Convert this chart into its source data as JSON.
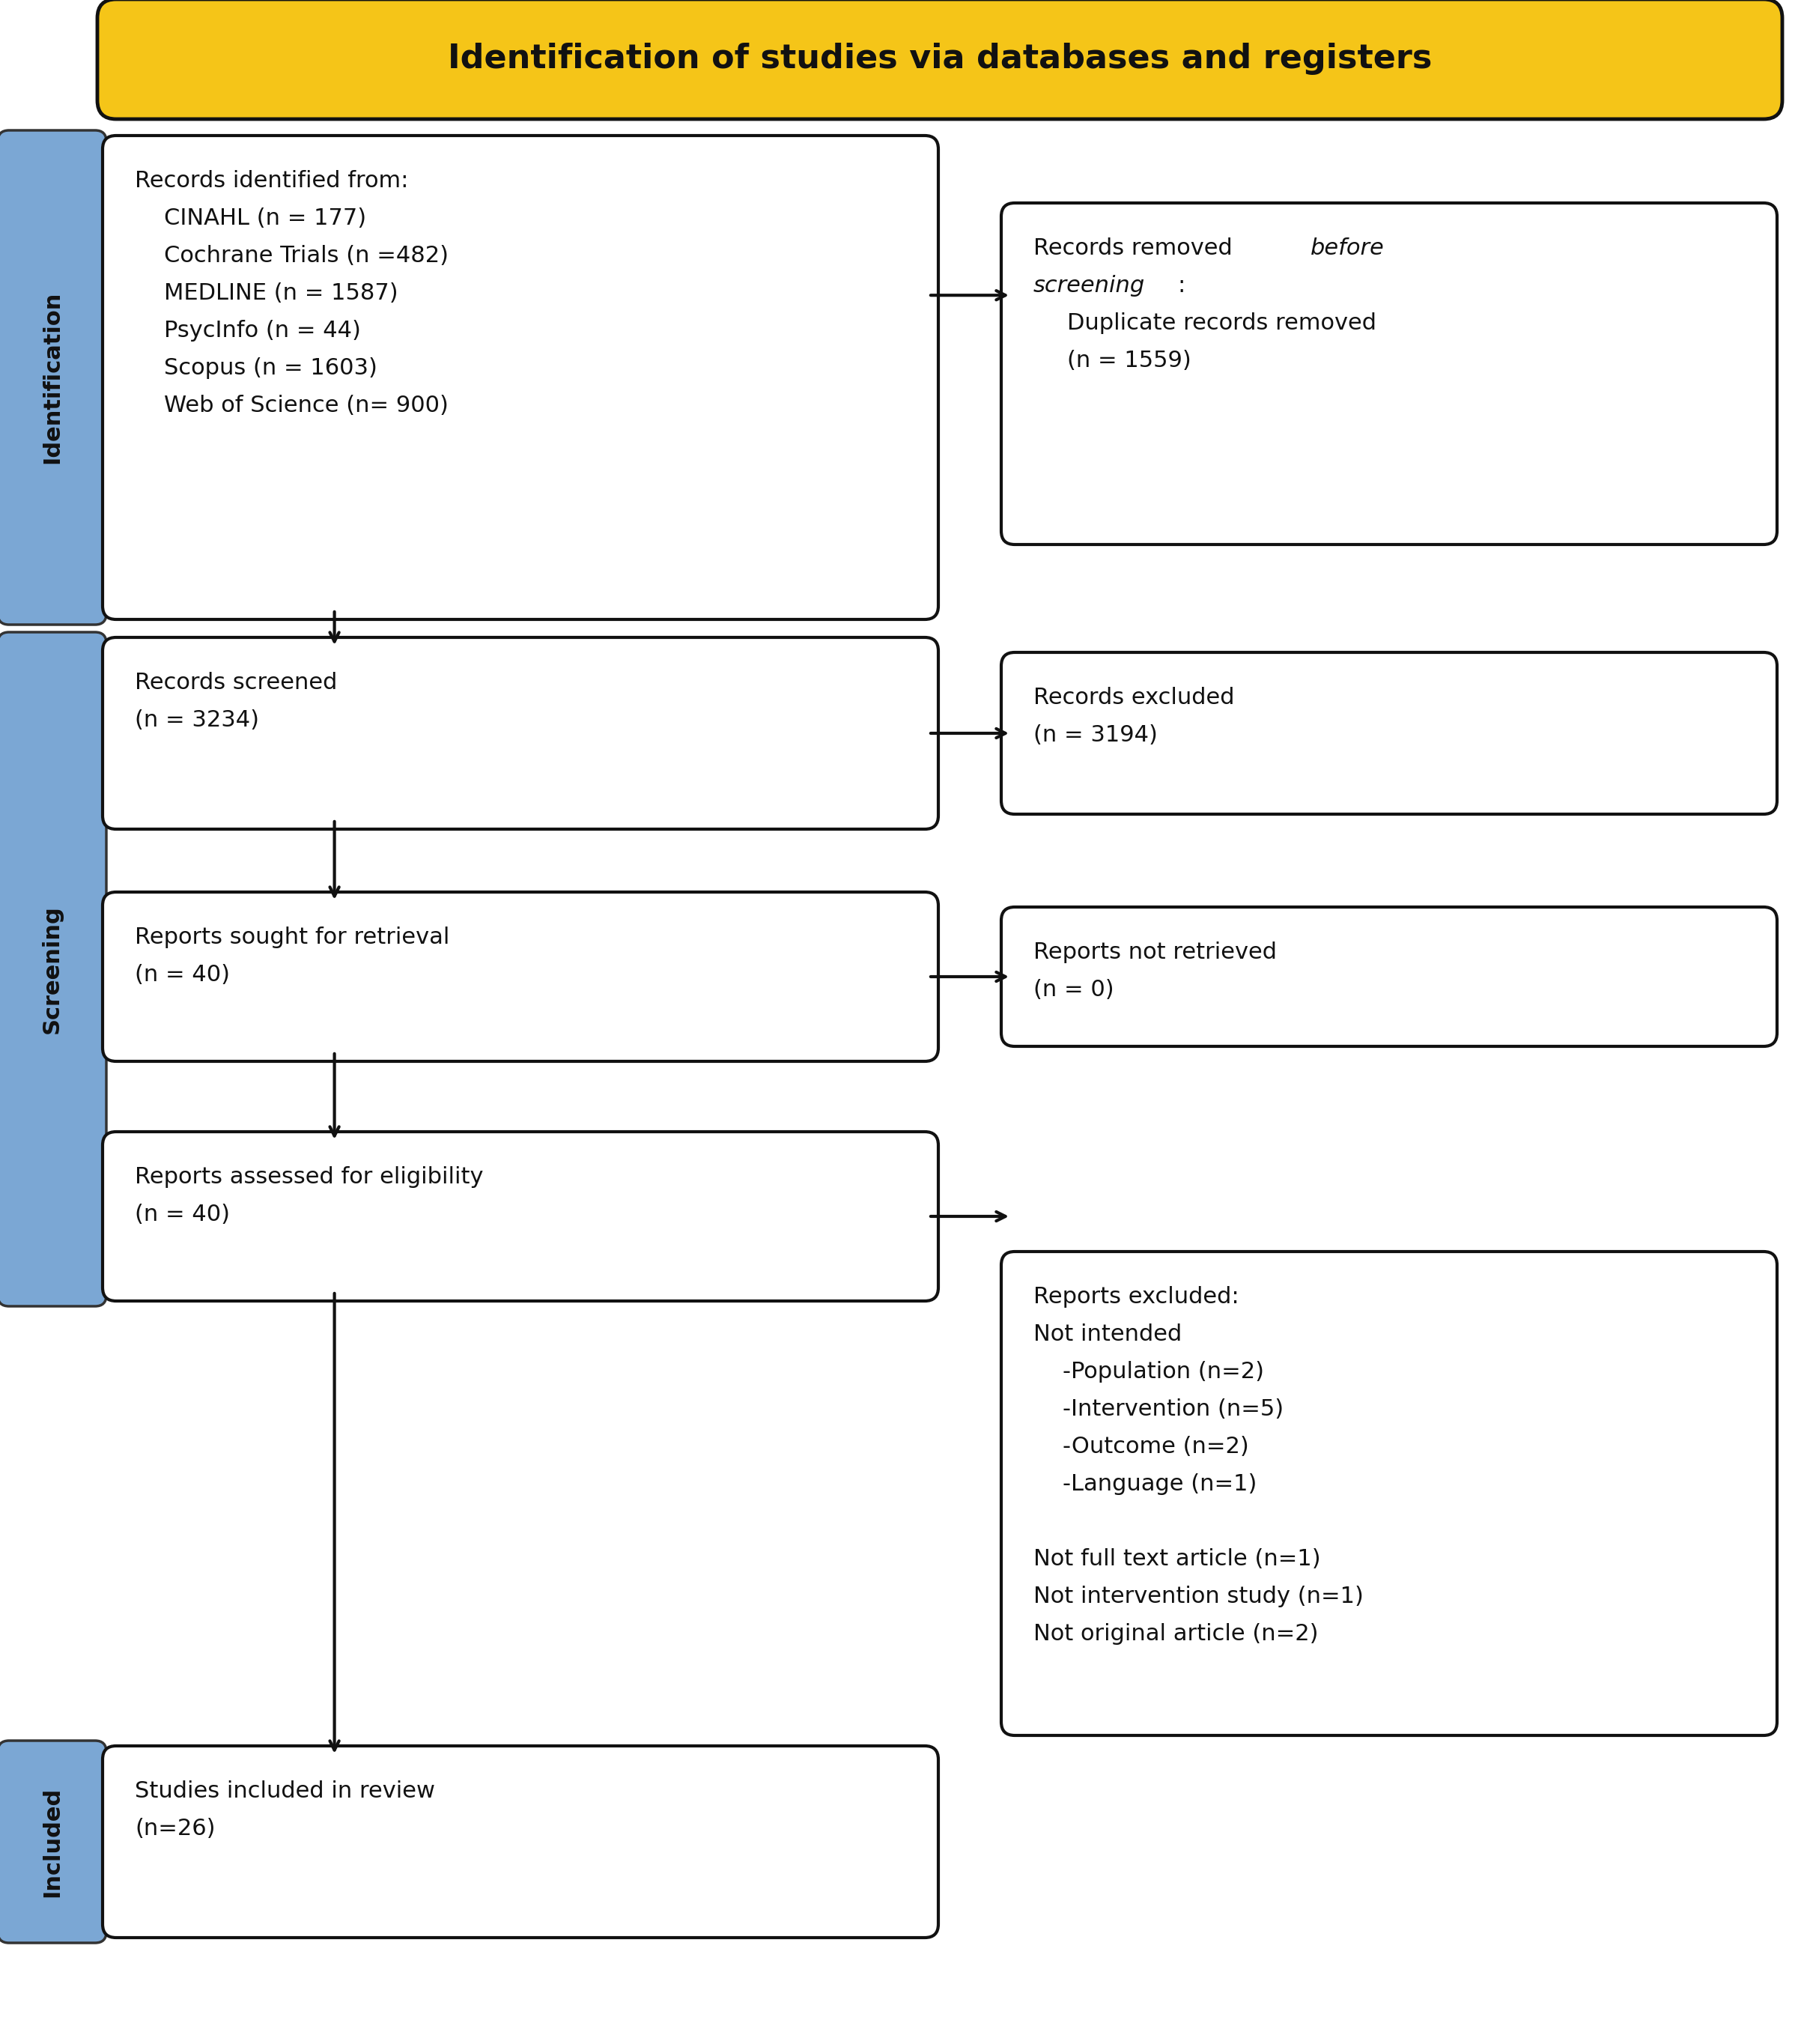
{
  "title": "Identification of studies via databases and registers",
  "title_bg": "#F5C518",
  "title_text_color": "#111111",
  "title_fontsize": 32,
  "box_border_color": "#111111",
  "box_bg": "#ffffff",
  "sidebar_color": "#7BA7D4",
  "font_size_box": 22,
  "arrow_color": "#111111",
  "sidebar_fontsize": 22,
  "box1_lines": [
    [
      "Records identified from:",
      false
    ],
    [
      "    CINAHL (n = 177)",
      false
    ],
    [
      "    Cochrane Trials (n =482)",
      false
    ],
    [
      "    MEDLINE (n = 1587)",
      false
    ],
    [
      "    PsycInfo (n = 44)",
      false
    ],
    [
      "    Scopus (n = 1603)",
      false
    ],
    [
      "    Web of Science (n= 900)",
      false
    ]
  ],
  "box2_line1_normal": "Records removed ",
  "box2_line1_italic": "before",
  "box2_line2_italic": "screening",
  "box2_line2_normal": ":",
  "box2_line3": "    Duplicate records removed",
  "box2_line4": "    (n = 1559)",
  "box3_text": "Records screened\n(n = 3234)",
  "box4_text": "Records excluded\n(n = 3194)",
  "box5_text": "Reports sought for retrieval\n(n = 40)",
  "box6_text": "Reports not retrieved\n(n = 0)",
  "box7_text": "Reports assessed for eligibility\n(n = 40)",
  "box8_lines": [
    [
      "Reports excluded:",
      false
    ],
    [
      "Not intended",
      false
    ],
    [
      "    -Population (n=2)",
      false
    ],
    [
      "    -Intervention (n=5)",
      false
    ],
    [
      "    -Outcome (n=2)",
      false
    ],
    [
      "    -Language (n=1)",
      false
    ],
    [
      "",
      false
    ],
    [
      "Not full text article (n=1)",
      false
    ],
    [
      "Not intervention study (n=1)",
      false
    ],
    [
      "Not original article (n=2)",
      false
    ]
  ],
  "box9_text": "Studies included in review\n(n=26)"
}
